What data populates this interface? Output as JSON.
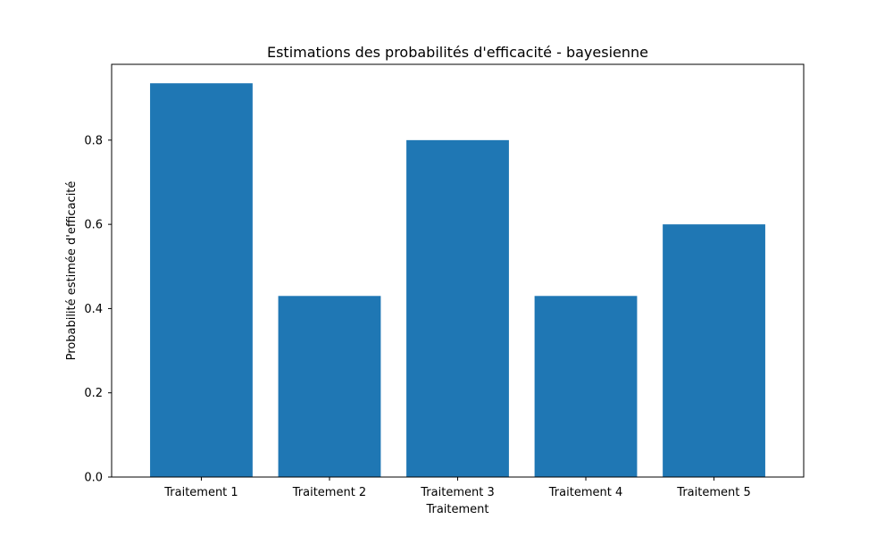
{
  "chart_data": {
    "type": "bar",
    "title": "Estimations des probabilités d'efficacité - bayesienne",
    "xlabel": "Traitement",
    "ylabel": "Probabilité estimée d'efficacité",
    "categories": [
      "Traitement 1",
      "Traitement 2",
      "Traitement 3",
      "Traitement 4",
      "Traitement 5"
    ],
    "values": [
      0.935,
      0.43,
      0.8,
      0.43,
      0.6
    ],
    "ylim": [
      0,
      0.98
    ],
    "yticks": [
      0.0,
      0.2,
      0.4,
      0.6,
      0.8
    ],
    "ytick_labels": [
      "0.0",
      "0.2",
      "0.4",
      "0.6",
      "0.8"
    ],
    "bar_color": "#1f77b4",
    "grid": false,
    "legend": "none"
  }
}
